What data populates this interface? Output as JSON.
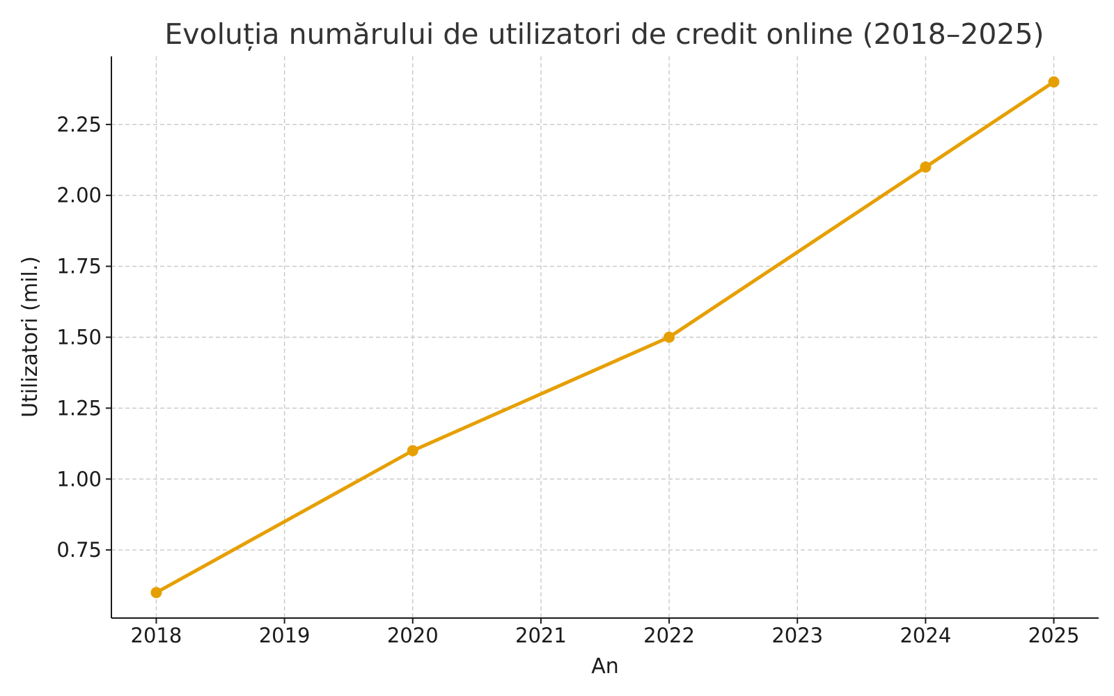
{
  "chart_data": {
    "type": "line",
    "title": "Evoluția numărului de utilizatori de credit online (2018–2025)",
    "xlabel": "An",
    "ylabel": "Utilizatori (mil.)",
    "x_ticks": [
      "2018",
      "2019",
      "2020",
      "2021",
      "2022",
      "2023",
      "2024",
      "2025"
    ],
    "y_ticks": [
      "0.75",
      "1.00",
      "1.25",
      "1.50",
      "1.75",
      "2.00",
      "2.25"
    ],
    "xlim": [
      2017.65,
      2025.35
    ],
    "ylim": [
      0.51,
      2.49
    ],
    "grid": true,
    "series": [
      {
        "color": "#E69F00",
        "x": [
          2018,
          2020,
          2022,
          2024,
          2025
        ],
        "y": [
          0.6,
          1.1,
          1.5,
          2.1,
          2.4
        ]
      }
    ]
  }
}
